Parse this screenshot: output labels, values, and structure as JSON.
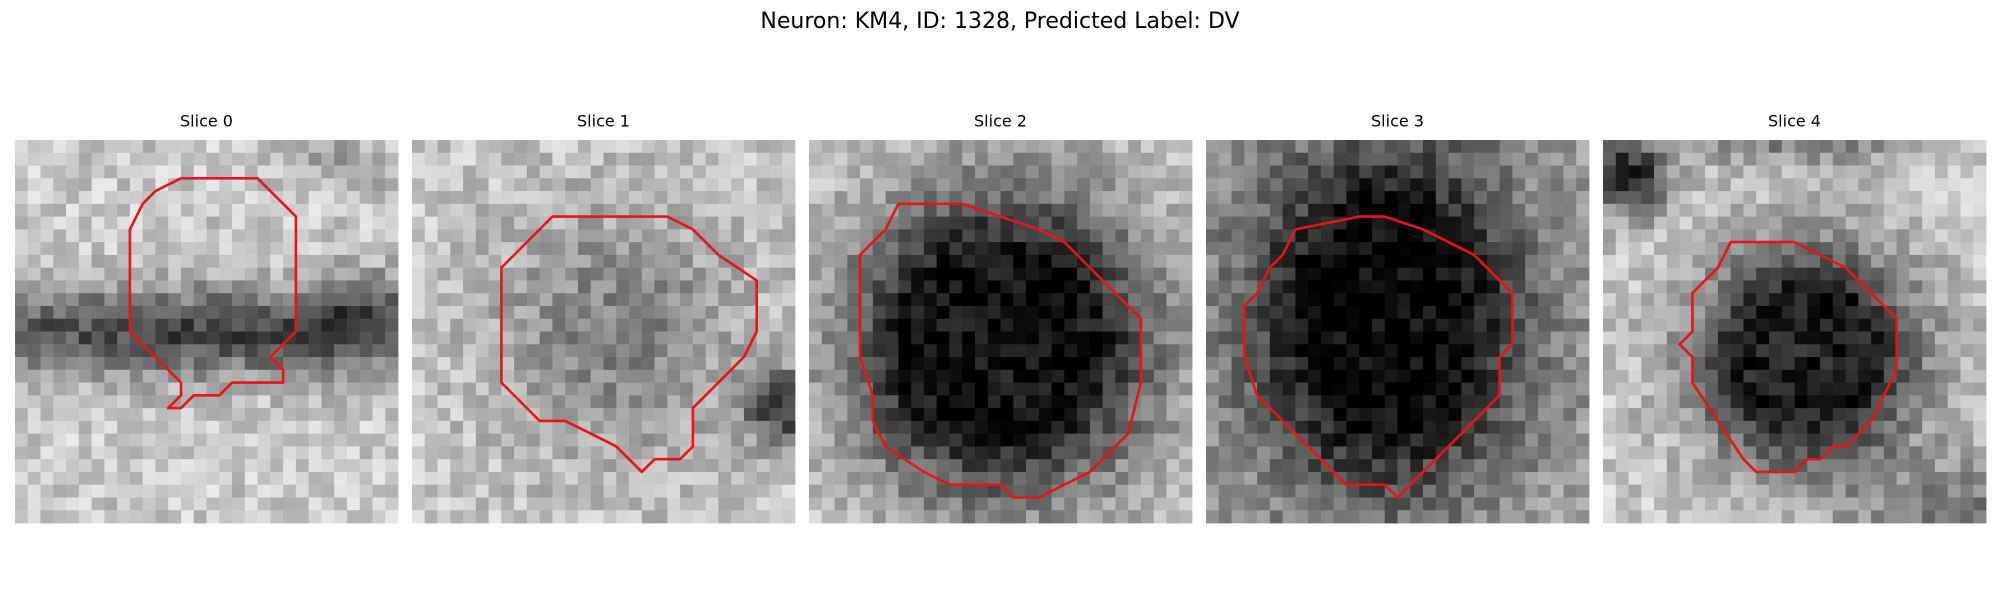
{
  "title": "Neuron: KM4, ID: 1328, Predicted Label: DV",
  "panels": [
    {
      "title": "Slice 0"
    },
    {
      "title": "Slice 1"
    },
    {
      "title": "Slice 2"
    },
    {
      "title": "Slice 3"
    },
    {
      "title": "Slice 4"
    }
  ]
}
